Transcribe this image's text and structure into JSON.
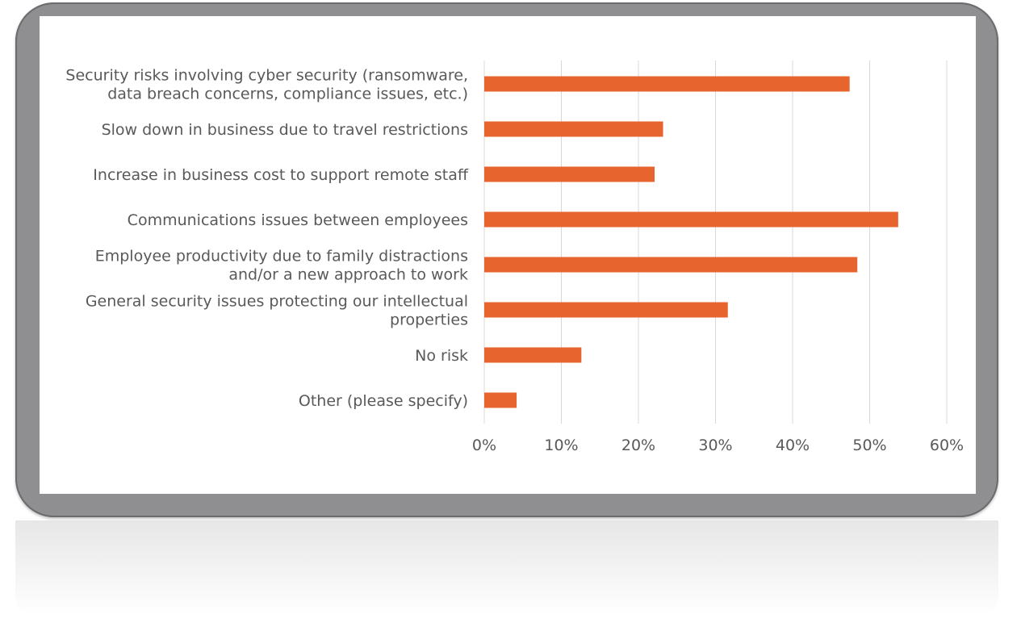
{
  "chart_data": {
    "type": "bar",
    "orientation": "horizontal",
    "categories": [
      [
        "Security risks involving cyber security (ransomware,",
        "data breach concerns, compliance issues, etc.)"
      ],
      [
        "Slow down in business due to travel restrictions"
      ],
      [
        "Increase in business cost to support remote staff"
      ],
      [
        "Communications issues between employees"
      ],
      [
        "Employee productivity due to family distractions",
        "and/or a new approach to work"
      ],
      [
        "General security issues protecting our intellectual",
        "properties"
      ],
      [
        "No risk"
      ],
      [
        "Other (please specify)"
      ]
    ],
    "values": [
      47.4,
      23.2,
      22.1,
      53.7,
      48.4,
      31.6,
      12.6,
      4.2
    ],
    "x_ticks": [
      "0%",
      "10%",
      "20%",
      "30%",
      "40%",
      "50%",
      "60%"
    ],
    "xlim": [
      0,
      60
    ],
    "grid": true,
    "title": "",
    "xlabel": "",
    "ylabel": ""
  },
  "colors": {
    "bar": "#e8642f",
    "gridline": "#d9d9d9",
    "text": "#595959",
    "frame": "#8f8f91",
    "panel": "#ffffff"
  }
}
